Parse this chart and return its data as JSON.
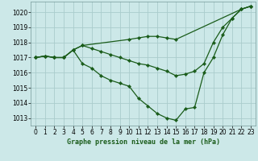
{
  "title": "Graphe pression niveau de la mer (hPa)",
  "bg_color": "#cce8e8",
  "grid_color": "#aacccc",
  "line_color": "#1a5c1a",
  "xlim": [
    -0.5,
    23.5
  ],
  "ylim": [
    1012.5,
    1020.7
  ],
  "yticks": [
    1013,
    1014,
    1015,
    1016,
    1017,
    1018,
    1019,
    1020
  ],
  "xticks": [
    0,
    1,
    2,
    3,
    4,
    5,
    6,
    7,
    8,
    9,
    10,
    11,
    12,
    13,
    14,
    15,
    16,
    17,
    18,
    19,
    20,
    21,
    22,
    23
  ],
  "series1_x": [
    0,
    1,
    2,
    3,
    4,
    5,
    6,
    7,
    8,
    9,
    10,
    11,
    12,
    13,
    14,
    15,
    16,
    17,
    18,
    19,
    20,
    21,
    22,
    23
  ],
  "series1_y": [
    1017.0,
    1017.1,
    1017.0,
    1017.0,
    1017.5,
    1016.6,
    1016.3,
    1015.8,
    1015.5,
    1015.3,
    1015.1,
    1014.3,
    1013.8,
    1013.3,
    1013.0,
    1012.85,
    1013.6,
    1013.7,
    1016.0,
    1017.0,
    1018.5,
    1019.6,
    1020.2,
    1020.4
  ],
  "series2_x": [
    0,
    1,
    2,
    3,
    4,
    5,
    6,
    7,
    8,
    9,
    10,
    11,
    12,
    13,
    14,
    15,
    16,
    17,
    18,
    19,
    20,
    21,
    22,
    23
  ],
  "series2_y": [
    1017.0,
    1017.1,
    1017.0,
    1017.0,
    1017.5,
    1017.8,
    1017.6,
    1017.4,
    1017.2,
    1017.0,
    1016.8,
    1016.6,
    1016.5,
    1016.3,
    1016.1,
    1015.8,
    1015.9,
    1016.1,
    1016.6,
    1018.0,
    1019.0,
    1019.6,
    1020.2,
    1020.4
  ],
  "series3_x": [
    0,
    1,
    2,
    3,
    4,
    5,
    10,
    11,
    12,
    13,
    14,
    15,
    22,
    23
  ],
  "series3_y": [
    1017.0,
    1017.1,
    1017.0,
    1017.0,
    1017.5,
    1017.8,
    1018.2,
    1018.3,
    1018.4,
    1018.4,
    1018.3,
    1018.2,
    1020.2,
    1020.4
  ]
}
